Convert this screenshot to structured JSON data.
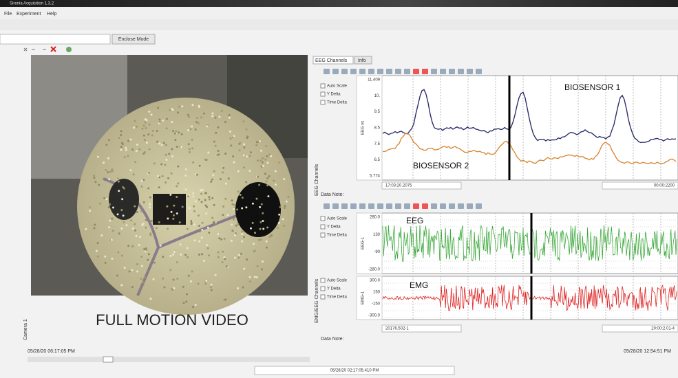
{
  "window": {
    "title": "Sirenia Acquisition 1.3.2",
    "menu": [
      "File",
      "Experiment",
      "Help"
    ],
    "tab": "Enclose Mode"
  },
  "video": {
    "caption": "FULL MOTION VIDEO",
    "side_label": "Camera 1",
    "timestamp": "05/28/20 06:17:05 PM"
  },
  "panel": {
    "tabs": [
      "EEG Channels",
      "Info"
    ],
    "data_note": "Data Note:",
    "side_labels": [
      "EEG Channels",
      "EMG/EEG Channels"
    ],
    "options": [
      "Auto Scale",
      "Y Delta",
      "Time Delta"
    ],
    "start_times": [
      "17:03:20.2075",
      "20176.502-1"
    ],
    "end_times": [
      "00:00:2200",
      "20:00:2.01-4"
    ],
    "end_timestamp": "05/28/20 12:54:51 PM",
    "center_timestamp": "05/28/20 02:17:05.410 PM"
  },
  "plots": [
    {
      "y_label": "EEG vs",
      "ticks": [
        "11.409",
        "10.",
        "9.5",
        "8.5",
        "7.5",
        "6.5",
        "5.774"
      ],
      "traces": [
        {
          "name": "BIOSENSOR 1",
          "color": "#2d2f6b"
        },
        {
          "name": "BIOSENSOR 2",
          "color": "#d98a3a"
        }
      ]
    },
    {
      "y_label": "EEG-1",
      "ticks": [
        "280.0",
        "130",
        "-90",
        "-280.0"
      ],
      "traces": [
        {
          "name": "EEG",
          "color": "#3aa83a"
        }
      ]
    },
    {
      "y_label": "EMG-1",
      "ticks": [
        "300.0",
        "150",
        "-150",
        "-300.0"
      ],
      "traces": [
        {
          "name": "EMG",
          "color": "#e02020"
        }
      ]
    }
  ]
}
